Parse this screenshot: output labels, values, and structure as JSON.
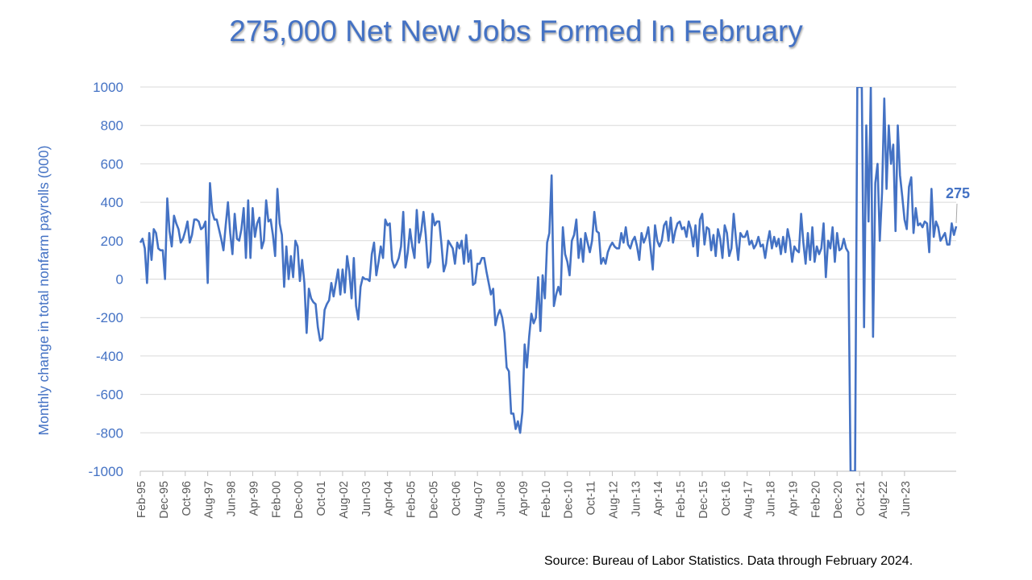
{
  "chart_data": {
    "type": "line",
    "title": "275,000 Net New Jobs Formed In February",
    "ylabel": "Monthly change in total nonfarm payrolls (000)",
    "xlabel": "",
    "ylim": [
      -1000,
      1000
    ],
    "yticks": [
      1000,
      800,
      600,
      400,
      200,
      0,
      -200,
      -400,
      -600,
      -800,
      -1000
    ],
    "grid": true,
    "start": "Feb-95",
    "x_tick_labels": [
      "Feb-95",
      "Dec-95",
      "Oct-96",
      "Aug-97",
      "Jun-98",
      "Apr-99",
      "Feb-00",
      "Dec-00",
      "Oct-01",
      "Aug-02",
      "Jun-03",
      "Apr-04",
      "Feb-05",
      "Dec-05",
      "Oct-06",
      "Aug-07",
      "Jun-08",
      "Apr-09",
      "Feb-10",
      "Dec-10",
      "Oct-11",
      "Aug-12",
      "Jun-13",
      "Apr-14",
      "Feb-15",
      "Dec-15",
      "Oct-16",
      "Aug-17",
      "Jun-18",
      "Apr-19",
      "Feb-20",
      "Dec-20",
      "Oct-21",
      "Aug-22",
      "Jun-23"
    ],
    "series": [
      {
        "color": "#4472c4",
        "values": [
          190,
          210,
          160,
          -20,
          240,
          100,
          260,
          240,
          160,
          150,
          150,
          0,
          420,
          250,
          170,
          330,
          290,
          260,
          190,
          210,
          250,
          300,
          190,
          230,
          310,
          310,
          300,
          260,
          270,
          300,
          -20,
          500,
          350,
          310,
          310,
          260,
          210,
          150,
          280,
          400,
          240,
          130,
          340,
          210,
          200,
          260,
          370,
          110,
          410,
          110,
          370,
          220,
          290,
          320,
          160,
          200,
          410,
          300,
          310,
          230,
          120,
          470,
          290,
          230,
          -40,
          170,
          0,
          120,
          10,
          200,
          170,
          -10,
          100,
          -20,
          -280,
          -50,
          -100,
          -120,
          -130,
          -250,
          -320,
          -310,
          -160,
          -130,
          -110,
          -20,
          -90,
          -20,
          50,
          -80,
          50,
          -70,
          120,
          40,
          -100,
          110,
          -140,
          -210,
          -40,
          10,
          0,
          0,
          -10,
          130,
          190,
          20,
          90,
          170,
          110,
          310,
          280,
          290,
          100,
          60,
          80,
          110,
          170,
          350,
          60,
          140,
          260,
          170,
          110,
          360,
          190,
          250,
          350,
          230,
          60,
          90,
          340,
          280,
          300,
          300,
          180,
          40,
          80,
          200,
          180,
          160,
          80,
          190,
          160,
          200,
          80,
          230,
          90,
          150,
          -30,
          -20,
          80,
          80,
          110,
          110,
          40,
          -20,
          -80,
          -50,
          -240,
          -190,
          -160,
          -200,
          -280,
          -460,
          -480,
          -700,
          -700,
          -780,
          -740,
          -800,
          -690,
          -340,
          -460,
          -300,
          -180,
          -230,
          -200,
          10,
          -270,
          20,
          -100,
          190,
          240,
          540,
          -140,
          -80,
          -40,
          -80,
          270,
          130,
          90,
          20,
          200,
          230,
          310,
          110,
          210,
          90,
          240,
          190,
          140,
          200,
          350,
          250,
          240,
          80,
          110,
          80,
          140,
          170,
          190,
          170,
          160,
          160,
          240,
          190,
          270,
          180,
          160,
          200,
          220,
          170,
          100,
          240,
          190,
          220,
          270,
          160,
          50,
          280,
          200,
          170,
          200,
          280,
          300,
          200,
          320,
          190,
          250,
          290,
          300,
          260,
          270,
          220,
          300,
          260,
          170,
          280,
          120,
          310,
          340,
          180,
          270,
          260,
          150,
          230,
          120,
          260,
          210,
          110,
          280,
          240,
          120,
          160,
          340,
          210,
          100,
          240,
          220,
          220,
          250,
          180,
          200,
          160,
          180,
          220,
          170,
          180,
          110,
          190,
          250,
          160,
          220,
          170,
          210,
          130,
          220,
          140,
          260,
          200,
          90,
          170,
          150,
          140,
          340,
          190,
          80,
          240,
          100,
          270,
          90,
          170,
          130,
          160,
          290,
          10,
          200,
          160,
          270,
          90,
          240,
          150,
          160,
          210,
          160,
          140,
          -1000,
          -1000,
          -1000,
          1000,
          1000,
          1000,
          -250,
          800,
          300,
          1000,
          -300,
          500,
          600,
          200,
          450,
          940,
          470,
          800,
          600,
          700,
          250,
          800,
          540,
          430,
          310,
          260,
          480,
          530,
          240,
          370,
          280,
          290,
          270,
          300,
          290,
          140,
          470,
          220,
          300,
          270,
          200,
          220,
          240,
          180,
          180,
          290,
          230,
          275
        ]
      }
    ],
    "annotations": [
      {
        "text": "275"
      }
    ]
  },
  "source_text": "Source: Bureau of Labor Statistics. Data through February 2024."
}
